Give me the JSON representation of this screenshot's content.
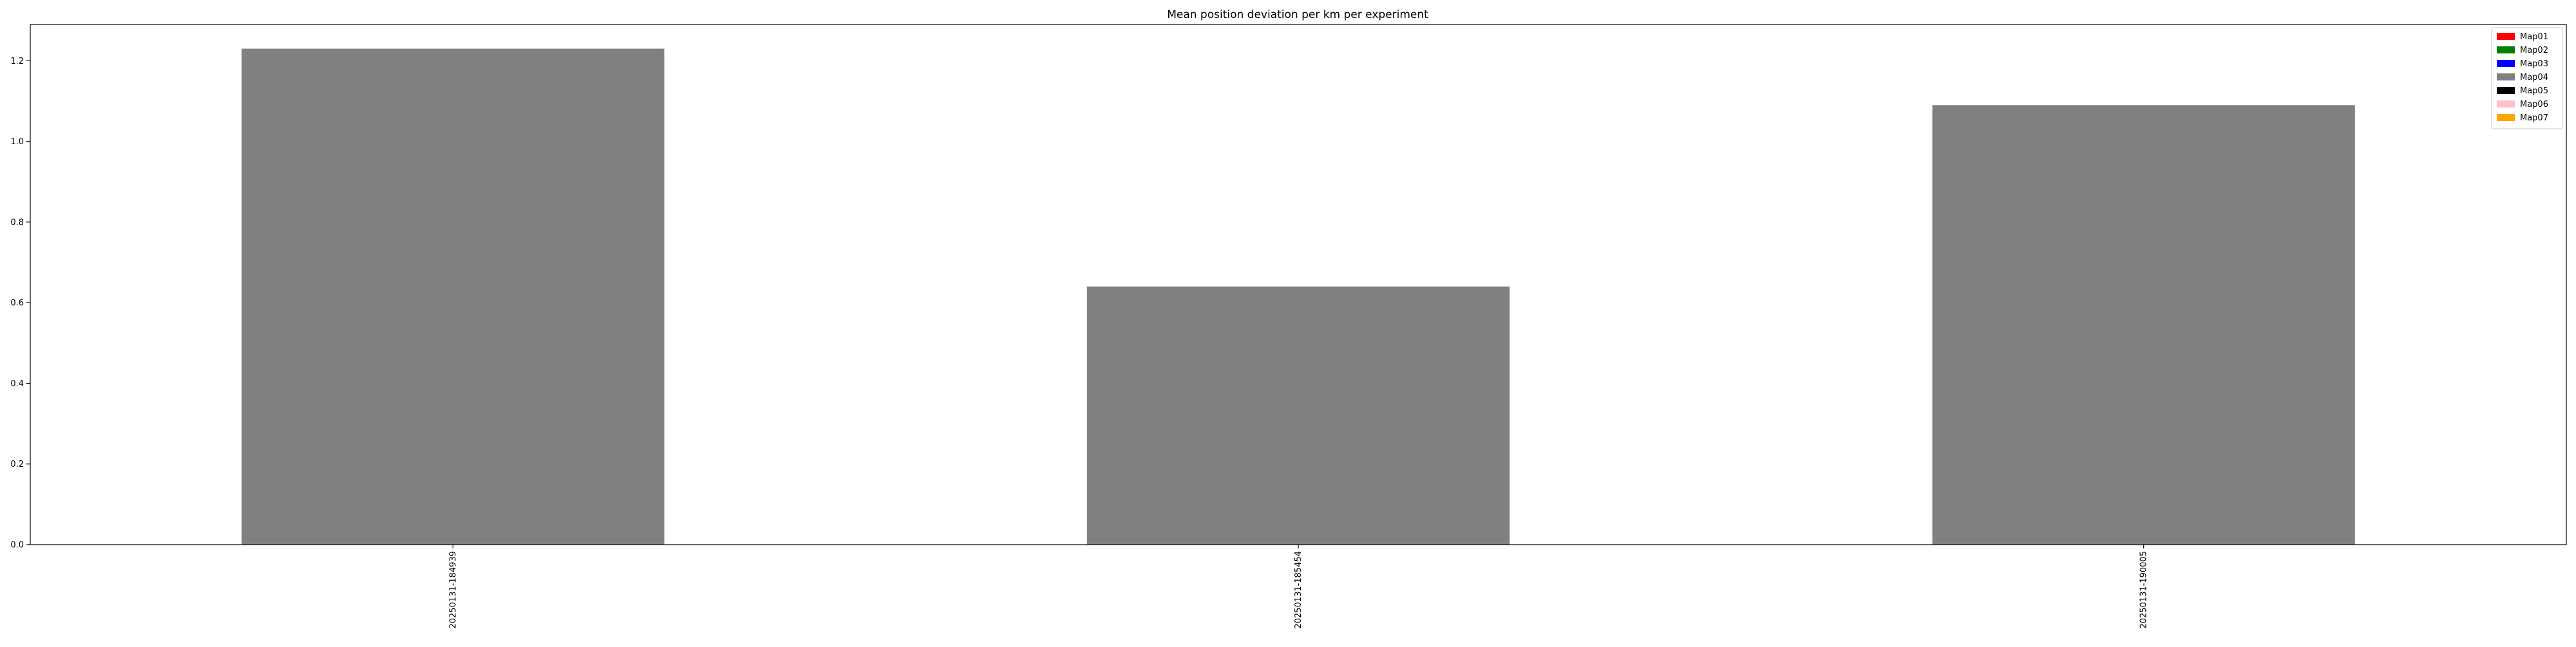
{
  "chart_data": {
    "type": "bar",
    "title": "Mean position deviation per km per experiment",
    "xlabel": "",
    "ylabel": "",
    "categories": [
      "20250131-184939",
      "20250131-185454",
      "20250131-190005"
    ],
    "series": [
      {
        "name": "Map04",
        "color": "#808080",
        "values": [
          1.23,
          0.64,
          1.09
        ]
      }
    ],
    "ylim": [
      0,
      1.29
    ],
    "yticks": [
      0.0,
      0.2,
      0.4,
      0.6,
      0.8,
      1.0,
      1.2
    ],
    "ytick_labels": [
      "0.0",
      "0.2",
      "0.4",
      "0.6",
      "0.8",
      "1.0",
      "1.2"
    ],
    "grid": false,
    "legend_position": "top-right",
    "legend": [
      {
        "label": "Map01",
        "color": "#ff0000"
      },
      {
        "label": "Map02",
        "color": "#008000"
      },
      {
        "label": "Map03",
        "color": "#0000ff"
      },
      {
        "label": "Map04",
        "color": "#808080"
      },
      {
        "label": "Map05",
        "color": "#000000"
      },
      {
        "label": "Map06",
        "color": "#ffc0cb"
      },
      {
        "label": "Map07",
        "color": "#ffa500"
      }
    ]
  }
}
